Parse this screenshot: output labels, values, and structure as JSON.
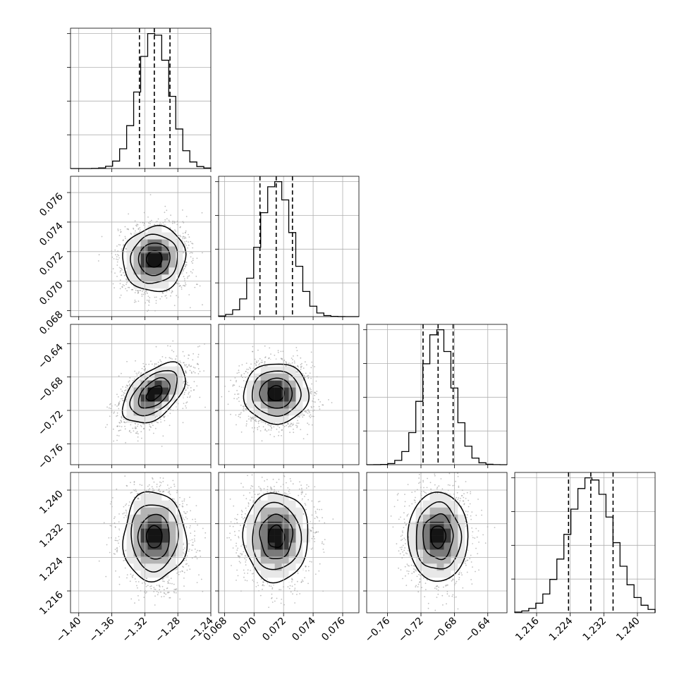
{
  "chart_data": {
    "type": "corner",
    "title": "",
    "parameters": [
      {
        "index": 0,
        "range": [
          -1.41,
          -1.24
        ],
        "quantiles": [
          -1.3265,
          -1.3085,
          -1.2895
        ],
        "ticks": [
          -1.4,
          -1.36,
          -1.32,
          -1.28,
          -1.24
        ],
        "tick_labels": [
          "−1.40",
          "−1.36",
          "−1.32",
          "−1.28",
          "−1.24"
        ],
        "center": -1.3085,
        "sigma": 0.019
      },
      {
        "index": 1,
        "range": [
          0.0676,
          0.0771
        ],
        "quantiles": [
          0.0704,
          0.0715,
          0.0726
        ],
        "ticks": [
          0.068,
          0.07,
          0.072,
          0.074,
          0.076
        ],
        "tick_labels": [
          "0.068",
          "0.070",
          "0.072",
          "0.074",
          "0.076"
        ],
        "center": 0.0715,
        "sigma": 0.0011
      },
      {
        "index": 2,
        "range": [
          -0.785,
          -0.617
        ],
        "quantiles": [
          -0.7175,
          -0.6995,
          -0.6815
        ],
        "ticks": [
          -0.76,
          -0.72,
          -0.68,
          -0.64
        ],
        "tick_labels": [
          "−0.76",
          "−0.72",
          "−0.68",
          "−0.64"
        ],
        "center": -0.6995,
        "sigma": 0.018
      },
      {
        "index": 3,
        "range": [
          1.2108,
          1.2442
        ],
        "quantiles": [
          1.2236,
          1.2289,
          1.2342
        ],
        "ticks": [
          1.216,
          1.224,
          1.232,
          1.24
        ],
        "tick_labels": [
          "1.216",
          "1.224",
          "1.232",
          "1.240"
        ],
        "center": 1.2289,
        "sigma": 0.0053
      }
    ],
    "correlations": [
      [
        1,
        0.05,
        0.5,
        0.0
      ],
      [
        0.05,
        1,
        0.0,
        0.0
      ],
      [
        0.5,
        0.0,
        1,
        0.0
      ],
      [
        0.0,
        0.0,
        0.0,
        1
      ]
    ],
    "contour_levels_sigma": [
      0.5,
      1.0,
      1.5,
      2.0
    ],
    "histogram_bins": 20,
    "grid": true,
    "histogram_line_color": "#000000",
    "sample_point_color": "#8c8c8c",
    "density_shades": [
      "#ffffff",
      "#e8e8e8",
      "#b4b4b4",
      "#7a7a7a",
      "#3c3c3c",
      "#141414"
    ]
  }
}
